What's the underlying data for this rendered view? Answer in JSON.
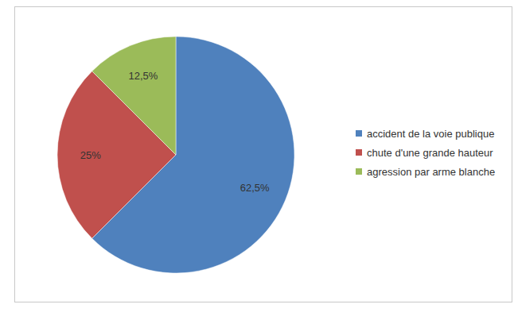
{
  "chart_data": {
    "type": "pie",
    "categories": [
      "accident de la voie publique",
      "chute d'une grande hauteur",
      "agression par arme blanche"
    ],
    "values": [
      62.5,
      25,
      12.5
    ],
    "value_labels": [
      "62,5%",
      "25%",
      "12,5%"
    ],
    "colors": [
      "#4f81bd",
      "#c0504d",
      "#9bbb59"
    ],
    "data_labels": true,
    "legend": "right"
  }
}
